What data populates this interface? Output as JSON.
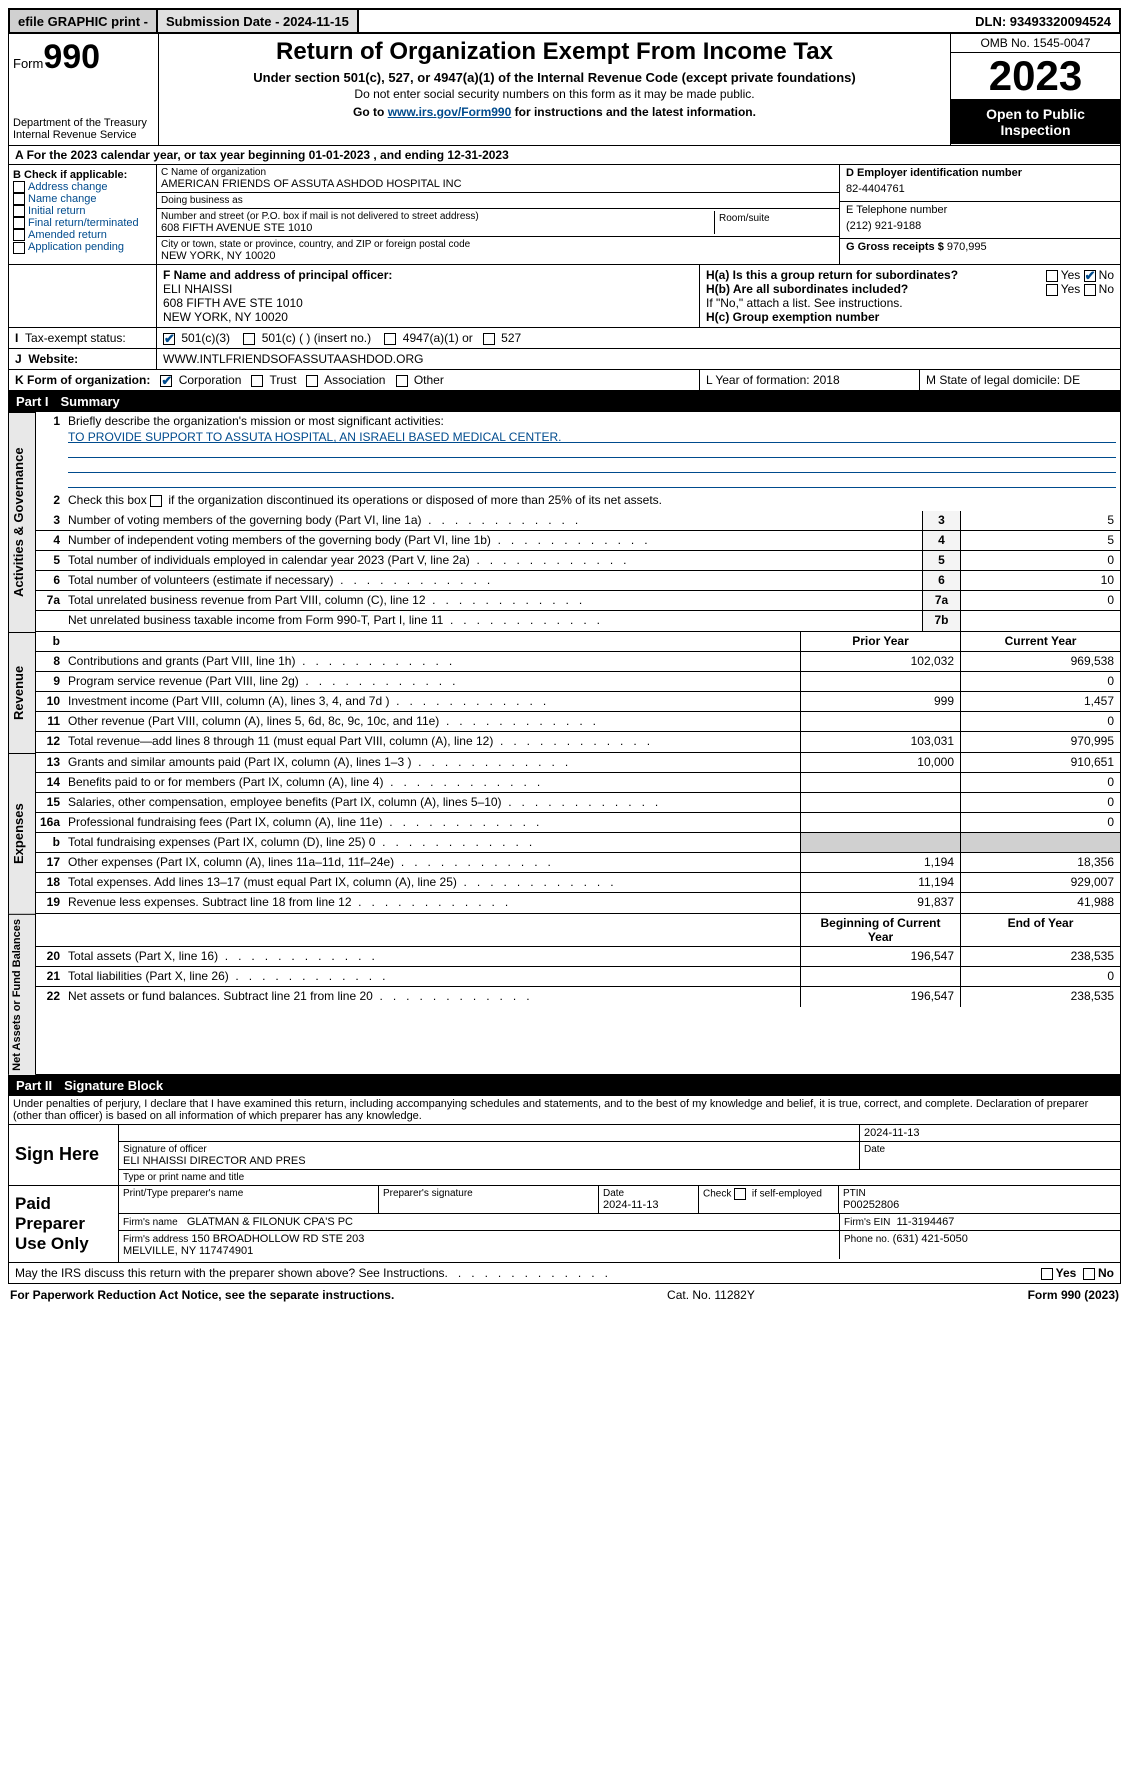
{
  "topbar": {
    "efile": "efile GRAPHIC print -",
    "submission": "Submission Date - 2024-11-15",
    "dln": "DLN: 93493320094524"
  },
  "header": {
    "form_label": "Form",
    "form_no": "990",
    "dept": "Department of the Treasury Internal Revenue Service",
    "title": "Return of Organization Exempt From Income Tax",
    "sub": "Under section 501(c), 527, or 4947(a)(1) of the Internal Revenue Code (except private foundations)",
    "sub2": "Do not enter social security numbers on this form as it may be made public.",
    "go": "Go to www.irs.gov/Form990 for instructions and the latest information.",
    "go_link": "www.irs.gov/Form990",
    "omb": "OMB No. 1545-0047",
    "year": "2023",
    "inspect": "Open to Public Inspection"
  },
  "lineA": "For the 2023 calendar year, or tax year beginning 01-01-2023   , and ending 12-31-2023",
  "colB": {
    "hdr": "B Check if applicable:",
    "items": [
      "Address change",
      "Name change",
      "Initial return",
      "Final return/terminated",
      "Amended return",
      "Application pending"
    ]
  },
  "colC": {
    "name_lbl": "C Name of organization",
    "name": "AMERICAN FRIENDS OF ASSUTA ASHDOD HOSPITAL INC",
    "dba_lbl": "Doing business as",
    "dba": "",
    "addr_lbl": "Number and street (or P.O. box if mail is not delivered to street address)",
    "addr": "608 FIFTH AVENUE STE 1010",
    "room_lbl": "Room/suite",
    "city_lbl": "City or town, state or province, country, and ZIP or foreign postal code",
    "city": "NEW YORK, NY  10020",
    "officer_lbl": "F  Name and address of principal officer:",
    "officer": "ELI NHAISSI\n608 FIFTH AVE STE 1010\nNEW YORK, NY  10020"
  },
  "colD": {
    "ein_lbl": "D Employer identification number",
    "ein": "82-4404761",
    "phone_lbl": "E Telephone number",
    "phone": "(212) 921-9188",
    "gross_lbl": "G Gross receipts $",
    "gross": "970,995"
  },
  "Hblock": {
    "a": "H(a)  Is this a group return for subordinates?",
    "b": "H(b)  Are all subordinates included?",
    "note": "If \"No,\" attach a list. See instructions.",
    "c": "H(c)  Group exemption number"
  },
  "rowI": {
    "lbl": "Tax-exempt status:",
    "o1": "501(c)(3)",
    "o2": "501(c) (  ) (insert no.)",
    "o3": "4947(a)(1) or",
    "o4": "527"
  },
  "rowJ": {
    "lbl": "Website:",
    "val": "WWW.INTLFRIENDSOFASSUTAASHDOD.ORG"
  },
  "rowK": {
    "lbl": "K Form of organization:",
    "o1": "Corporation",
    "o2": "Trust",
    "o3": "Association",
    "o4": "Other",
    "L": "L Year of formation: 2018",
    "M": "M State of legal domicile: DE"
  },
  "part1": {
    "num": "Part I",
    "title": "Summary"
  },
  "summary": {
    "side1": "Activities & Governance",
    "side2": "Revenue",
    "side3": "Expenses",
    "side4": "Net Assets or Fund Balances",
    "l1a": "Briefly describe the organization's mission or most significant activities:",
    "l1b": "TO PROVIDE SUPPORT TO ASSUTA HOSPITAL, AN ISRAELI BASED MEDICAL CENTER.",
    "l2": "Check this box         if the organization discontinued its operations or disposed of more than 25% of its net assets.",
    "lines_ag": [
      {
        "n": "3",
        "t": "Number of voting members of the governing body (Part VI, line 1a)",
        "b": "3",
        "v": "5"
      },
      {
        "n": "4",
        "t": "Number of independent voting members of the governing body (Part VI, line 1b)",
        "b": "4",
        "v": "5"
      },
      {
        "n": "5",
        "t": "Total number of individuals employed in calendar year 2023 (Part V, line 2a)",
        "b": "5",
        "v": "0"
      },
      {
        "n": "6",
        "t": "Total number of volunteers (estimate if necessary)",
        "b": "6",
        "v": "10"
      },
      {
        "n": "7a",
        "t": "Total unrelated business revenue from Part VIII, column (C), line 12",
        "b": "7a",
        "v": "0"
      },
      {
        "n": "",
        "t": "Net unrelated business taxable income from Form 990-T, Part I, line 11",
        "b": "7b",
        "v": ""
      }
    ],
    "col_hdr": {
      "b": "b",
      "py": "Prior Year",
      "cy": "Current Year"
    },
    "lines_rev": [
      {
        "n": "8",
        "t": "Contributions and grants (Part VIII, line 1h)",
        "py": "102,032",
        "cy": "969,538"
      },
      {
        "n": "9",
        "t": "Program service revenue (Part VIII, line 2g)",
        "py": "",
        "cy": "0"
      },
      {
        "n": "10",
        "t": "Investment income (Part VIII, column (A), lines 3, 4, and 7d )",
        "py": "999",
        "cy": "1,457"
      },
      {
        "n": "11",
        "t": "Other revenue (Part VIII, column (A), lines 5, 6d, 8c, 9c, 10c, and 11e)",
        "py": "",
        "cy": "0"
      },
      {
        "n": "12",
        "t": "Total revenue—add lines 8 through 11 (must equal Part VIII, column (A), line 12)",
        "py": "103,031",
        "cy": "970,995"
      }
    ],
    "lines_exp": [
      {
        "n": "13",
        "t": "Grants and similar amounts paid (Part IX, column (A), lines 1–3 )",
        "py": "10,000",
        "cy": "910,651"
      },
      {
        "n": "14",
        "t": "Benefits paid to or for members (Part IX, column (A), line 4)",
        "py": "",
        "cy": "0"
      },
      {
        "n": "15",
        "t": "Salaries, other compensation, employee benefits (Part IX, column (A), lines 5–10)",
        "py": "",
        "cy": "0"
      },
      {
        "n": "16a",
        "t": "Professional fundraising fees (Part IX, column (A), line 11e)",
        "py": "",
        "cy": "0"
      },
      {
        "n": "b",
        "t": "Total fundraising expenses (Part IX, column (D), line 25) 0",
        "py": "GREY",
        "cy": "GREY"
      },
      {
        "n": "17",
        "t": "Other expenses (Part IX, column (A), lines 11a–11d, 11f–24e)",
        "py": "1,194",
        "cy": "18,356"
      },
      {
        "n": "18",
        "t": "Total expenses. Add lines 13–17 (must equal Part IX, column (A), line 25)",
        "py": "11,194",
        "cy": "929,007"
      },
      {
        "n": "19",
        "t": "Revenue less expenses. Subtract line 18 from line 12",
        "py": "91,837",
        "cy": "41,988"
      }
    ],
    "col_hdr2": {
      "py": "Beginning of Current Year",
      "cy": "End of Year"
    },
    "lines_na": [
      {
        "n": "20",
        "t": "Total assets (Part X, line 16)",
        "py": "196,547",
        "cy": "238,535"
      },
      {
        "n": "21",
        "t": "Total liabilities (Part X, line 26)",
        "py": "",
        "cy": "0"
      },
      {
        "n": "22",
        "t": "Net assets or fund balances. Subtract line 21 from line 20",
        "py": "196,547",
        "cy": "238,535"
      }
    ]
  },
  "part2": {
    "num": "Part II",
    "title": "Signature Block"
  },
  "sig_decl": "Under penalties of perjury, I declare that I have examined this return, including accompanying schedules and statements, and to the best of my knowledge and belief, it is true, correct, and complete. Declaration of preparer (other than officer) is based on all information of which preparer has any knowledge.",
  "sign": {
    "label": "Sign Here",
    "date": "2024-11-13",
    "sig_lbl": "Signature of officer",
    "name": "ELI NHAISSI  DIRECTOR AND PRES",
    "type_lbl": "Type or print name and title",
    "date_lbl": "Date"
  },
  "paid": {
    "label": "Paid Preparer Use Only",
    "h1": "Print/Type preparer's name",
    "h2": "Preparer's signature",
    "h3": "Date",
    "h4": "Check         if self-employed",
    "h5": "PTIN",
    "date": "2024-11-13",
    "ptin": "P00252806",
    "firm_lbl": "Firm's name",
    "firm": "GLATMAN & FILONUK CPA'S PC",
    "ein_lbl": "Firm's EIN",
    "ein": "11-3194467",
    "addr_lbl": "Firm's address",
    "addr": "150 BROADHOLLOW RD STE 203\nMELVILLE, NY  117474901",
    "phone_lbl": "Phone no.",
    "phone": "(631) 421-5050"
  },
  "discuss": "May the IRS discuss this return with the preparer shown above? See Instructions.",
  "footer": {
    "l": "For Paperwork Reduction Act Notice, see the separate instructions.",
    "c": "Cat. No. 11282Y",
    "r": "Form 990 (2023)"
  }
}
